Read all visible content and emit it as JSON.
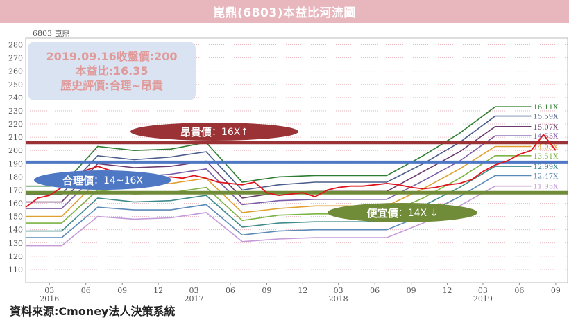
{
  "title": "崑鼎(6803)本益比河流圖",
  "stock_label": "6803  崑鼎",
  "info_box": {
    "line1": "2019.09.16收盤價:200",
    "line2": "本益比:16.35",
    "line3": "歷史評價:合理~昂貴"
  },
  "bands": {
    "high": {
      "label": "昂貴價",
      "value": "：16X↑"
    },
    "mid": {
      "label": "合理價",
      "value": "：14~16X"
    },
    "low": {
      "label": "便宜價",
      "value": "：14X ↓"
    }
  },
  "source": "資料來源:Cmoney法人決策系統",
  "colors": {
    "title_bg": "#e8b7be",
    "price": "#e0141c",
    "expensive_line": "#9a3236",
    "fair_line": "#4f78c4",
    "cheap_line": "#718c39"
  },
  "chart_data": {
    "type": "line",
    "title": "崑鼎(6803)本益比河流圖",
    "ylim": [
      100,
      285
    ],
    "y_ticks": [
      110,
      120,
      130,
      140,
      150,
      160,
      170,
      180,
      190,
      200,
      210,
      220,
      230,
      240,
      250,
      260,
      270,
      280
    ],
    "x_ticks": [
      {
        "label": "03",
        "year": "2016",
        "date": "2016-03"
      },
      {
        "label": "06",
        "year": "",
        "date": "2016-06"
      },
      {
        "label": "09",
        "year": "",
        "date": "2016-09"
      },
      {
        "label": "12",
        "year": "",
        "date": "2016-12"
      },
      {
        "label": "03",
        "year": "2017",
        "date": "2017-03"
      },
      {
        "label": "06",
        "year": "",
        "date": "2017-06"
      },
      {
        "label": "09",
        "year": "",
        "date": "2017-09"
      },
      {
        "label": "12",
        "year": "",
        "date": "2017-12"
      },
      {
        "label": "03",
        "year": "2018",
        "date": "2018-03"
      },
      {
        "label": "06",
        "year": "",
        "date": "2018-06"
      },
      {
        "label": "09",
        "year": "",
        "date": "2018-09"
      },
      {
        "label": "12",
        "year": "",
        "date": "2018-12"
      },
      {
        "label": "03",
        "year": "2019",
        "date": "2019-03"
      },
      {
        "label": "06",
        "year": "",
        "date": "2019-06"
      },
      {
        "label": "09",
        "year": "",
        "date": "2019-09"
      }
    ],
    "reference_lines": [
      {
        "name": "昂貴價",
        "y": 206,
        "color": "#9a3236"
      },
      {
        "name": "合理價",
        "y": 191,
        "color": "#4f78c4"
      },
      {
        "name": "便宜價",
        "y": 168,
        "color": "#718c39"
      }
    ],
    "pe_dates": [
      "2016-01",
      "2016-04",
      "2016-07",
      "2016-10",
      "2017-01",
      "2017-04",
      "2017-07",
      "2017-10",
      "2018-01",
      "2018-04",
      "2018-07",
      "2018-10",
      "2019-01",
      "2019-04",
      "2019-07"
    ],
    "pe_series": [
      {
        "name": "16.11X",
        "color": "#2e7d32",
        "values": [
          173,
          173,
          203,
          200,
          201,
          206,
          176,
          180,
          181,
          181,
          181,
          196,
          213,
          233,
          233
        ]
      },
      {
        "name": "15.59X",
        "color": "#4a5d8a",
        "values": [
          167,
          167,
          196,
          193,
          195,
          199,
          170,
          174,
          176,
          176,
          176,
          190,
          206,
          226,
          226
        ]
      },
      {
        "name": "15.07X",
        "color": "#6c3a6e",
        "values": [
          161,
          161,
          190,
          187,
          188,
          192,
          164,
          168,
          169,
          169,
          169,
          184,
          199,
          218,
          218
        ]
      },
      {
        "name": "14.55X",
        "color": "#7b5ea7",
        "values": [
          156,
          156,
          183,
          180,
          182,
          186,
          159,
          162,
          163,
          163,
          163,
          177,
          192,
          211,
          211
        ]
      },
      {
        "name": "14.03X",
        "color": "#e0a030",
        "values": [
          150,
          150,
          177,
          174,
          175,
          179,
          153,
          156,
          158,
          158,
          158,
          171,
          186,
          203,
          203
        ]
      },
      {
        "name": "13.51X",
        "color": "#7cb342",
        "values": [
          145,
          145,
          170,
          167,
          168,
          172,
          147,
          151,
          152,
          152,
          152,
          164,
          179,
          196,
          196
        ]
      },
      {
        "name": "12.99X",
        "color": "#3f8a8a",
        "values": [
          139,
          139,
          164,
          161,
          162,
          166,
          142,
          145,
          146,
          146,
          146,
          158,
          172,
          188,
          188
        ]
      },
      {
        "name": "12.47X",
        "color": "#5a8ab8",
        "values": [
          134,
          134,
          157,
          155,
          155,
          159,
          136,
          139,
          140,
          140,
          140,
          151,
          165,
          181,
          181
        ]
      },
      {
        "name": "11.95X",
        "color": "#c49ad8",
        "values": [
          128,
          128,
          150,
          148,
          149,
          153,
          131,
          133,
          134,
          134,
          134,
          145,
          158,
          173,
          173
        ]
      }
    ],
    "price": {
      "name": "收盤價",
      "dates": [
        "2016-01",
        "2016-02",
        "2016-03",
        "2016-04",
        "2016-05",
        "2016-06",
        "2016-07",
        "2016-08",
        "2016-09",
        "2016-10",
        "2016-11",
        "2016-12",
        "2017-01",
        "2017-02",
        "2017-03",
        "2017-04",
        "2017-05",
        "2017-06",
        "2017-07",
        "2017-08",
        "2017-09",
        "2017-10",
        "2017-11",
        "2017-12",
        "2018-01",
        "2018-02",
        "2018-03",
        "2018-04",
        "2018-05",
        "2018-06",
        "2018-07",
        "2018-08",
        "2018-09",
        "2018-10",
        "2018-11",
        "2018-12",
        "2019-01",
        "2019-02",
        "2019-03",
        "2019-04",
        "2019-05",
        "2019-06",
        "2019-07",
        "2019-08",
        "2019-09"
      ],
      "values": [
        157,
        164,
        166,
        172,
        178,
        185,
        188,
        185,
        182,
        180,
        181,
        179,
        180,
        179,
        181,
        179,
        176,
        175,
        174,
        176,
        168,
        166,
        167,
        168,
        165,
        170,
        172,
        173,
        173,
        174,
        175,
        174,
        172,
        171,
        172,
        174,
        175,
        178,
        184,
        189,
        192,
        197,
        200,
        212,
        200
      ]
    }
  }
}
